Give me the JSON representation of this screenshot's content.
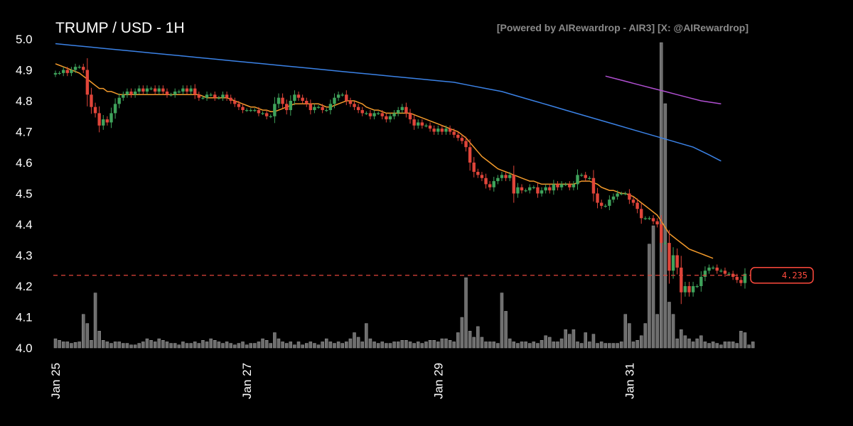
{
  "header": {
    "title": "TRUMP / USD - 1H",
    "credit": "[Powered by AIRewardrop - AIR3] [X: @AIRewardrop]"
  },
  "chart_data": {
    "type": "candlestick",
    "title": "TRUMP / USD - 1H",
    "ylim": [
      4.0,
      5.0
    ],
    "y_ticks": [
      "4.0",
      "4.1",
      "4.2",
      "4.3",
      "4.4",
      "4.5",
      "4.6",
      "4.7",
      "4.8",
      "4.9",
      "5.0"
    ],
    "x_ticks": [
      "Jan 25",
      "Jan 27",
      "Jan 29",
      "Jan 31"
    ],
    "x_tick_indices": [
      0,
      48,
      96,
      144
    ],
    "current_price": 4.235,
    "current_price_label": "4.235",
    "grid": false,
    "colors": {
      "up": "#3fa35b",
      "down": "#e0453a",
      "volume": "#6e6e6e",
      "ma_fast": "#f39a2b",
      "ma_slow": "#3b82e6",
      "ma_long": "#b04fd1",
      "price_line": "#e0453a"
    },
    "closes": [
      4.89,
      4.89,
      4.9,
      4.89,
      4.9,
      4.91,
      4.91,
      4.9,
      4.82,
      4.78,
      4.76,
      4.72,
      4.74,
      4.73,
      4.76,
      4.79,
      4.81,
      4.82,
      4.83,
      4.82,
      4.83,
      4.84,
      4.83,
      4.84,
      4.84,
      4.83,
      4.84,
      4.83,
      4.82,
      4.82,
      4.83,
      4.83,
      4.84,
      4.83,
      4.84,
      4.82,
      4.81,
      4.81,
      4.82,
      4.82,
      4.81,
      4.81,
      4.82,
      4.81,
      4.8,
      4.79,
      4.78,
      4.77,
      4.77,
      4.77,
      4.77,
      4.76,
      4.76,
      4.75,
      4.75,
      4.79,
      4.81,
      4.79,
      4.77,
      4.8,
      4.82,
      4.81,
      4.8,
      4.79,
      4.77,
      4.78,
      4.78,
      4.77,
      4.77,
      4.79,
      4.81,
      4.82,
      4.82,
      4.8,
      4.79,
      4.78,
      4.77,
      4.76,
      4.76,
      4.75,
      4.76,
      4.76,
      4.75,
      4.74,
      4.75,
      4.76,
      4.77,
      4.78,
      4.76,
      4.74,
      4.72,
      4.73,
      4.72,
      4.72,
      4.71,
      4.7,
      4.71,
      4.7,
      4.71,
      4.7,
      4.69,
      4.68,
      4.67,
      4.65,
      4.6,
      4.57,
      4.56,
      4.55,
      4.53,
      4.52,
      4.54,
      4.55,
      4.56,
      4.55,
      4.56,
      4.5,
      4.52,
      4.51,
      4.51,
      4.52,
      4.52,
      4.5,
      4.51,
      4.52,
      4.51,
      4.53,
      4.52,
      4.53,
      4.53,
      4.52,
      4.53,
      4.56,
      4.56,
      4.55,
      4.55,
      4.5,
      4.47,
      4.46,
      4.46,
      4.48,
      4.49,
      4.5,
      4.5,
      4.5,
      4.48,
      4.47,
      4.45,
      4.42,
      4.42,
      4.42,
      4.41,
      4.4,
      4.34,
      4.34,
      4.25,
      4.3,
      4.26,
      4.18,
      4.2,
      4.18,
      4.2,
      4.2,
      4.23,
      4.25,
      4.26,
      4.26,
      4.25,
      4.25,
      4.24,
      4.24,
      4.23,
      4.22,
      4.21,
      4.24
    ],
    "volume": [
      0.03,
      0.025,
      0.02,
      0.02,
      0.015,
      0.018,
      0.02,
      0.11,
      0.08,
      0.025,
      0.18,
      0.055,
      0.025,
      0.02,
      0.015,
      0.02,
      0.02,
      0.015,
      0.015,
      0.01,
      0.01,
      0.015,
      0.02,
      0.03,
      0.025,
      0.02,
      0.03,
      0.025,
      0.02,
      0.015,
      0.015,
      0.01,
      0.02,
      0.015,
      0.015,
      0.02,
      0.015,
      0.025,
      0.02,
      0.03,
      0.025,
      0.02,
      0.015,
      0.02,
      0.015,
      0.01,
      0.015,
      0.02,
      0.01,
      0.015,
      0.015,
      0.02,
      0.03,
      0.025,
      0.015,
      0.05,
      0.03,
      0.02,
      0.015,
      0.02,
      0.01,
      0.02,
      0.01,
      0.015,
      0.02,
      0.015,
      0.01,
      0.02,
      0.03,
      0.02,
      0.015,
      0.02,
      0.015,
      0.02,
      0.03,
      0.05,
      0.035,
      0.02,
      0.08,
      0.03,
      0.02,
      0.015,
      0.02,
      0.015,
      0.015,
      0.02,
      0.02,
      0.025,
      0.025,
      0.02,
      0.015,
      0.02,
      0.015,
      0.02,
      0.025,
      0.025,
      0.02,
      0.03,
      0.03,
      0.025,
      0.02,
      0.05,
      0.1,
      0.23,
      0.055,
      0.035,
      0.07,
      0.035,
      0.02,
      0.02,
      0.02,
      0.015,
      0.18,
      0.12,
      0.03,
      0.02,
      0.015,
      0.02,
      0.02,
      0.015,
      0.02,
      0.015,
      0.025,
      0.04,
      0.035,
      0.02,
      0.02,
      0.03,
      0.06,
      0.045,
      0.06,
      0.02,
      0.015,
      0.05,
      0.02,
      0.045,
      0.015,
      0.02,
      0.015,
      0.015,
      0.015,
      0.015,
      0.02,
      0.11,
      0.08,
      0.02,
      0.025,
      0.04,
      0.08,
      0.34,
      0.4,
      0.11,
      1.0,
      0.8,
      0.15,
      0.11,
      0.03,
      0.06,
      0.04,
      0.03,
      0.02,
      0.03,
      0.04,
      0.02,
      0.015,
      0.02,
      0.015,
      0.01,
      0.02,
      0.02,
      0.02,
      0.015,
      0.055,
      0.05,
      0.01,
      0.02
    ],
    "ma_fast": [
      4.92,
      4.915,
      4.91,
      4.905,
      4.9,
      4.895,
      4.89,
      4.88,
      4.87,
      4.86,
      4.85,
      4.84,
      4.84,
      4.83,
      4.83,
      4.825,
      4.82,
      4.82,
      4.82,
      4.82,
      4.82,
      4.82,
      4.82,
      4.82,
      4.82,
      4.82,
      4.82,
      4.82,
      4.82,
      4.82,
      4.82,
      4.82,
      4.82,
      4.82,
      4.82,
      4.82,
      4.82,
      4.815,
      4.81,
      4.81,
      4.81,
      4.81,
      4.81,
      4.81,
      4.805,
      4.8,
      4.795,
      4.79,
      4.785,
      4.78,
      4.78,
      4.775,
      4.77,
      4.77,
      4.765,
      4.765,
      4.77,
      4.775,
      4.78,
      4.785,
      4.79,
      4.79,
      4.79,
      4.79,
      4.79,
      4.79,
      4.79,
      4.785,
      4.78,
      4.78,
      4.785,
      4.79,
      4.795,
      4.8,
      4.8,
      4.8,
      4.795,
      4.79,
      4.78,
      4.775,
      4.77,
      4.77,
      4.765,
      4.76,
      4.76,
      4.76,
      4.76,
      4.76,
      4.76,
      4.76,
      4.755,
      4.75,
      4.745,
      4.74,
      4.735,
      4.73,
      4.725,
      4.72,
      4.715,
      4.71,
      4.705,
      4.7,
      4.69,
      4.68,
      4.665,
      4.65,
      4.635,
      4.62,
      4.61,
      4.6,
      4.59,
      4.58,
      4.575,
      4.57,
      4.565,
      4.56,
      4.555,
      4.55,
      4.545,
      4.54,
      4.54,
      4.535,
      4.53,
      4.53,
      4.53,
      4.53,
      4.53,
      4.53,
      4.53,
      4.53,
      4.53,
      4.535,
      4.54,
      4.54,
      4.54,
      4.535,
      4.53,
      4.52,
      4.515,
      4.51,
      4.51,
      4.505,
      4.5,
      4.5,
      4.495,
      4.49,
      4.48,
      4.47,
      4.46,
      4.45,
      4.44,
      4.43,
      4.41,
      4.39,
      4.37,
      4.36,
      4.35,
      4.34,
      4.33,
      4.32,
      4.315,
      4.31,
      4.305,
      4.3,
      4.295,
      4.29
    ],
    "ma_slow": [
      4.985,
      4.98,
      4.975,
      4.97,
      4.965,
      4.96,
      4.955,
      4.95,
      4.945,
      4.94,
      4.935,
      4.93,
      4.925,
      4.92,
      4.915,
      4.91,
      4.905,
      4.9,
      4.895,
      4.89,
      4.885,
      4.88,
      4.875,
      4.87,
      4.865,
      4.86,
      4.85,
      4.84,
      4.83,
      4.815,
      4.8,
      4.785,
      4.77,
      4.755,
      4.74,
      4.725,
      4.71,
      4.695,
      4.68,
      4.665,
      4.65,
      4.625,
      4.605
    ],
    "ma_slow_x": [
      0,
      4,
      8,
      12,
      16,
      20,
      24,
      28,
      32,
      36,
      40,
      44,
      48,
      52,
      56,
      60,
      64,
      68,
      72,
      76,
      80,
      84,
      88,
      92,
      96,
      100,
      104,
      108,
      112,
      116,
      120,
      124,
      128,
      132,
      136,
      140,
      144,
      148,
      152,
      156,
      160,
      164,
      167
    ],
    "ma_long": [
      4.88,
      4.87,
      4.86,
      4.85,
      4.84,
      4.83,
      4.82,
      4.81,
      4.8,
      4.79
    ],
    "ma_long_x": [
      138,
      141,
      144,
      147,
      150,
      153,
      156,
      159,
      162,
      167
    ]
  }
}
